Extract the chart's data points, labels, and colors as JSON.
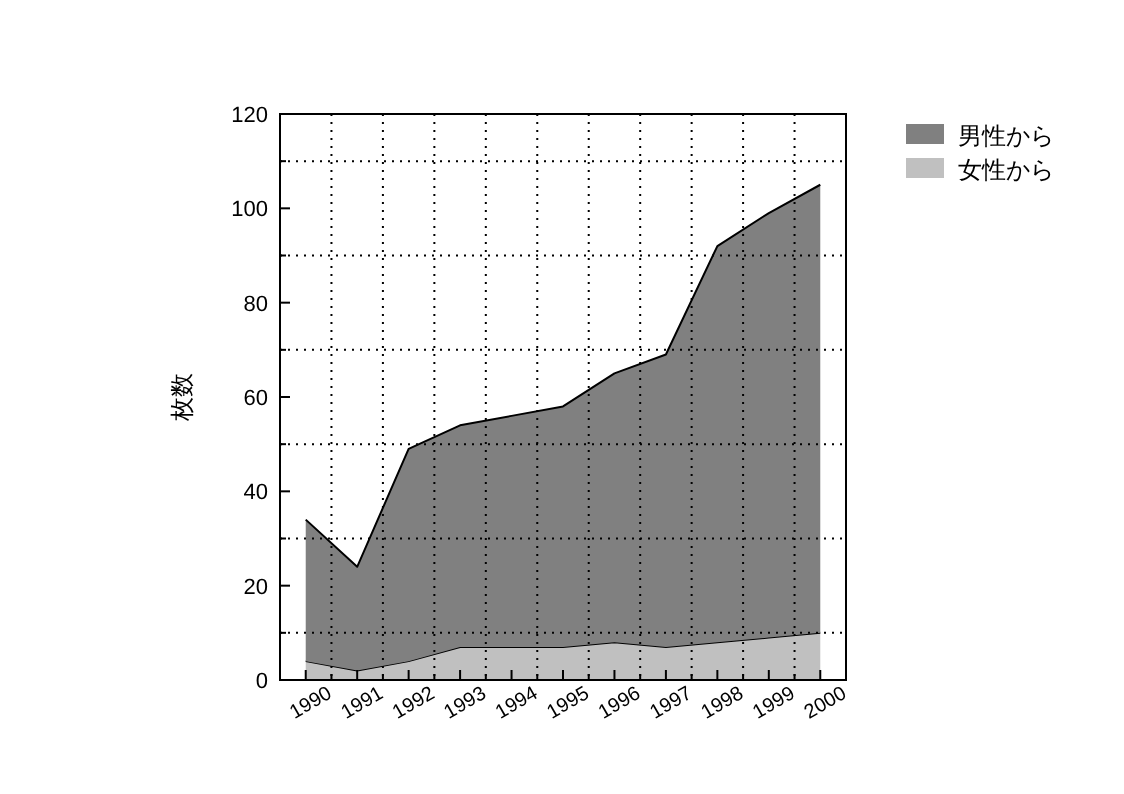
{
  "chart_data": {
    "type": "area",
    "stacked": true,
    "ylabel": "枚数",
    "x": [
      1990,
      1991,
      1992,
      1993,
      1994,
      1995,
      1996,
      1997,
      1998,
      1999,
      2000
    ],
    "series": [
      {
        "name": "女性から",
        "color": "#c0c0c0",
        "values": [
          4,
          2,
          4,
          7,
          7,
          7,
          8,
          7,
          8,
          9,
          10
        ]
      },
      {
        "name": "男性から",
        "color": "#808080",
        "values": [
          30,
          22,
          45,
          47,
          49,
          51,
          57,
          62,
          84,
          90,
          95
        ]
      }
    ],
    "xlim": [
      1989.5,
      2000.5
    ],
    "xticks": [
      1990,
      {
        "value": 1990.5,
        "label": null
      },
      1991,
      {
        "value": 1991.5,
        "label": null
      },
      1992,
      {
        "value": 1992.5,
        "label": null
      },
      1993,
      {
        "value": 1993.5,
        "label": null
      },
      1994,
      {
        "value": 1994.5,
        "label": null
      },
      1995,
      {
        "value": 1995.5,
        "label": null
      },
      1996,
      {
        "value": 1996.5,
        "label": null
      },
      1997,
      {
        "value": 1997.5,
        "label": null
      },
      1998,
      {
        "value": 1998.5,
        "label": null
      },
      1999,
      {
        "value": 1999.5,
        "label": null
      },
      2000
    ],
    "ylim": [
      0,
      120
    ],
    "yticks": [
      0,
      {
        "value": 10,
        "label": null
      },
      20,
      {
        "value": 30,
        "label": null
      },
      40,
      {
        "value": 50,
        "label": null
      },
      60,
      {
        "value": 70,
        "label": null
      },
      80,
      {
        "value": 90,
        "label": null
      },
      100,
      {
        "value": 110,
        "label": null
      },
      120
    ],
    "grid": true,
    "legend": "top right"
  }
}
